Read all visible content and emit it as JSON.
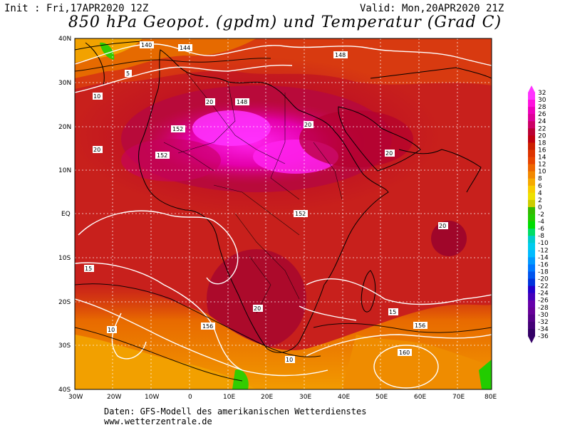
{
  "header": {
    "init": "Init : Fri,17APR2020 12Z",
    "valid": "Valid: Mon,20APR2020 21Z",
    "title": "850 hPa Geopot. (gpdm) und Temperatur (Grad C)"
  },
  "map": {
    "lat_labels": [
      "40N",
      "30N",
      "20N",
      "10N",
      "EQ",
      "10S",
      "20S",
      "30S",
      "40S"
    ],
    "lon_labels": [
      "30W",
      "20W",
      "10W",
      "0",
      "10E",
      "20E",
      "30E",
      "40E",
      "50E",
      "60E",
      "70E",
      "80E"
    ],
    "geopotential_labels": [
      "140",
      "144",
      "148",
      "152",
      "156",
      "160"
    ],
    "temperature_labels": [
      "5",
      "10",
      "15",
      "20"
    ]
  },
  "colorbar": {
    "ticks": [
      "32",
      "30",
      "28",
      "26",
      "24",
      "22",
      "20",
      "18",
      "16",
      "14",
      "12",
      "10",
      "8",
      "6",
      "4",
      "2",
      "0",
      "-2",
      "-4",
      "-6",
      "-8",
      "-10",
      "-12",
      "-14",
      "-16",
      "-18",
      "-20",
      "-22",
      "-24",
      "-26",
      "-28",
      "-30",
      "-32",
      "-34",
      "-36"
    ],
    "colors": [
      "#ff33ff",
      "#ff11dd",
      "#ee00bb",
      "#dd0099",
      "#cc0066",
      "#bb0033",
      "#c00010",
      "#cc1f00",
      "#dd3300",
      "#e84400",
      "#ee6600",
      "#f28800",
      "#f6aa00",
      "#f8cc00",
      "#eee000",
      "#cccc00",
      "#33bb00",
      "#22cc00",
      "#00dd00",
      "#00dd66",
      "#00cccc",
      "#00ccee",
      "#00bbff",
      "#0099ff",
      "#0077ff",
      "#0055ee",
      "#0033dd",
      "#2200cc",
      "#4400bb",
      "#6600aa",
      "#660099",
      "#550088",
      "#440077",
      "#330066"
    ]
  },
  "footer": {
    "line1": "Daten: GFS-Modell des amerikanischen Wetterdienstes",
    "line2": "www.wetterzentrale.de"
  }
}
